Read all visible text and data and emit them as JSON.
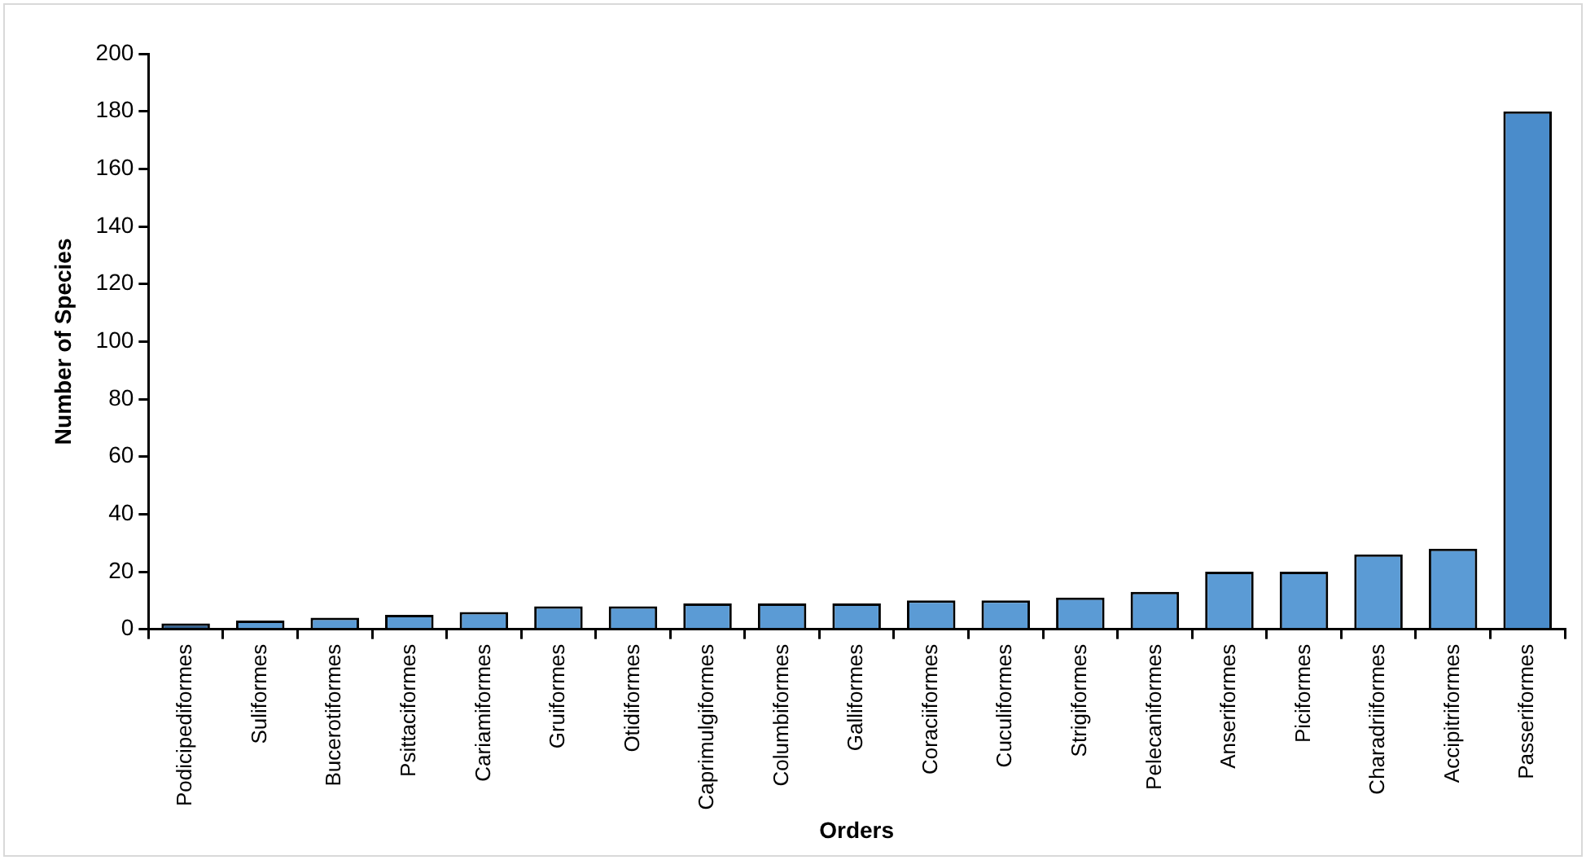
{
  "chart_data": {
    "type": "bar",
    "xlabel": "Orders",
    "ylabel": "Number of Species",
    "categories": [
      "Podicipediformes",
      "Suliformes",
      "Bucerotiformes",
      "Psittaciformes",
      "Cariamiformes",
      "Gruiformes",
      "Otidiformes",
      "Caprimulgiformes",
      "Columbiformes",
      "Galliformes",
      "Coraciiformes",
      "Cuculiformes",
      "Strigiformes",
      "Pelecaniformes",
      "Anseriformes",
      "Piciformes",
      "Charadriiformes",
      "Accipitriformes",
      "Passeriformes"
    ],
    "values": [
      2,
      3,
      4,
      5,
      6,
      8,
      8,
      9,
      9,
      9,
      10,
      10,
      11,
      13,
      20,
      20,
      26,
      28,
      180
    ],
    "colors": [
      "#2f5f8f",
      "#5b9bd5",
      "#5b9bd5",
      "#5b9bd5",
      "#5b9bd5",
      "#5b9bd5",
      "#5b9bd5",
      "#5b9bd5",
      "#5b9bd5",
      "#5b9bd5",
      "#5b9bd5",
      "#5b9bd5",
      "#5b9bd5",
      "#5b9bd5",
      "#5b9bd5",
      "#5b9bd5",
      "#5b9bd5",
      "#5b9bd5",
      "#4a8ccb"
    ],
    "ylim": [
      0,
      200
    ],
    "yticks": [
      0,
      20,
      40,
      60,
      80,
      100,
      120,
      140,
      160,
      180,
      200
    ],
    "grid": false,
    "legend": false
  }
}
